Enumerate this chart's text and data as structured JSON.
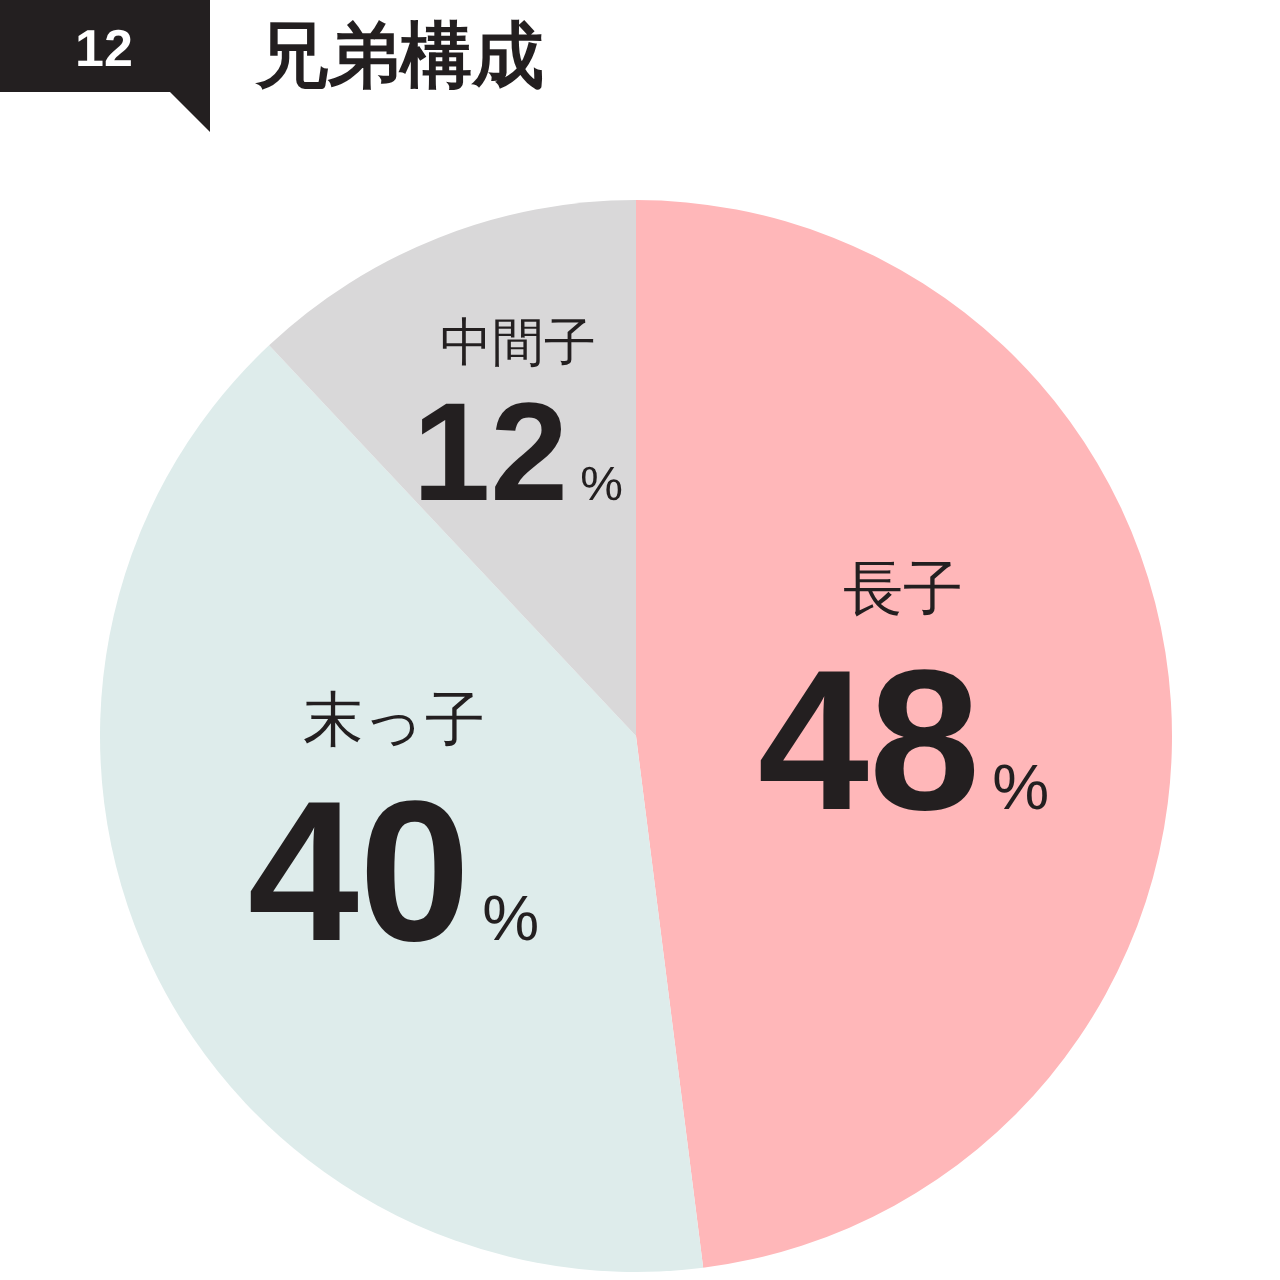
{
  "chart_data": {
    "type": "pie",
    "title": "兄弟構成",
    "annotations": [
      "12"
    ],
    "categories": [
      "長子",
      "末っ子",
      "中間子"
    ],
    "values": [
      48,
      40,
      12
    ],
    "colors": [
      "#ffb7b9",
      "#deeceb",
      "#d9d8d9"
    ],
    "value_labels": [
      "48%",
      "40%",
      "12%"
    ]
  }
}
